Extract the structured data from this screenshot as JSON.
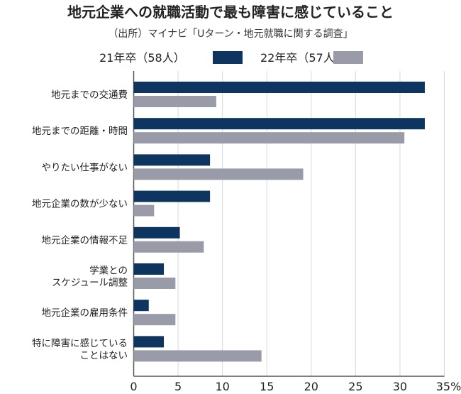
{
  "chart_data": {
    "type": "bar",
    "orientation": "horizontal",
    "title": "地元企業への就職活動で最も障害に感じていること",
    "subtitle": "（出所）マイナビ「Uターン・地元就職に関する調査」",
    "categories": [
      [
        "地元までの交通費"
      ],
      [
        "地元までの距離・時間"
      ],
      [
        "やりたい仕事がない"
      ],
      [
        "地元企業の数が少ない"
      ],
      [
        "地元企業の情報不足"
      ],
      [
        "学業との",
        "スケジュール調整"
      ],
      [
        "地元企業の雇用条件"
      ],
      [
        "特に障害に感じている",
        "ことはない"
      ]
    ],
    "series": [
      {
        "name": "21年卒（58人）",
        "color": "#0d3560",
        "values": [
          32.8,
          32.8,
          8.6,
          8.6,
          5.2,
          3.4,
          1.7,
          3.4
        ]
      },
      {
        "name": "22年卒（57人）",
        "color": "#9a9ba8",
        "values": [
          9.3,
          30.5,
          19.1,
          2.3,
          7.9,
          4.7,
          4.7,
          14.4
        ]
      }
    ],
    "xlim": [
      0,
      35
    ],
    "xticks": [
      "0",
      "5",
      "10",
      "15",
      "20",
      "25",
      "30",
      "35%"
    ],
    "grid": true,
    "legend": "top"
  }
}
